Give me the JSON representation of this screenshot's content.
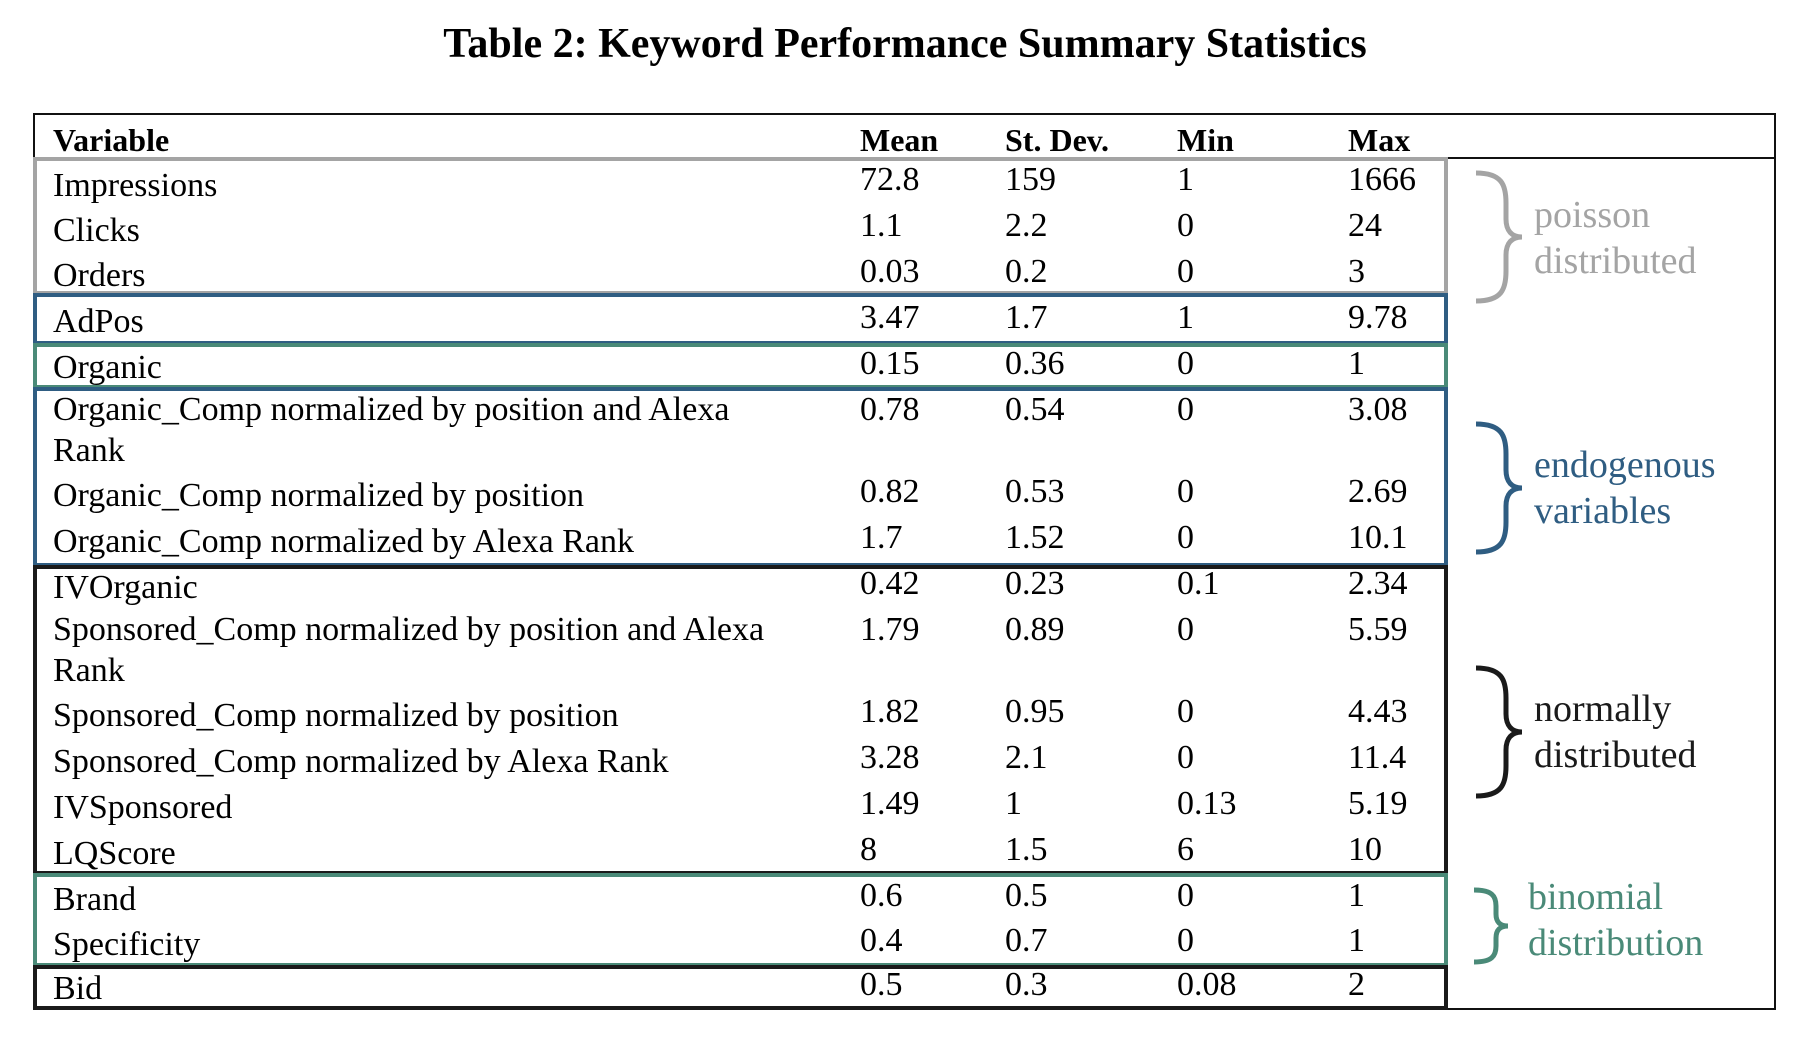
{
  "title": "Table 2:  Keyword Performance Summary Statistics",
  "columns": [
    "Variable",
    "Mean",
    "St. Dev.",
    "Min",
    "Max"
  ],
  "rows": [
    {
      "variable": "Impressions",
      "mean": "72.8",
      "sd": "159",
      "min": "1",
      "max": "1666"
    },
    {
      "variable": "Clicks",
      "mean": "1.1",
      "sd": "2.2",
      "min": "0",
      "max": "24"
    },
    {
      "variable": "Orders",
      "mean": "0.03",
      "sd": "0.2",
      "min": "0",
      "max": "3"
    },
    {
      "variable": "AdPos",
      "mean": "3.47",
      "sd": "1.7",
      "min": "1",
      "max": "9.78"
    },
    {
      "variable": "Organic",
      "mean": "0.15",
      "sd": "0.36",
      "min": "0",
      "max": "1"
    },
    {
      "variable": "Organic_Comp normalized by position and Alexa",
      "variable2": "Rank",
      "mean": "0.78",
      "sd": "0.54",
      "min": "0",
      "max": "3.08"
    },
    {
      "variable": "Organic_Comp normalized by position",
      "mean": "0.82",
      "sd": "0.53",
      "min": "0",
      "max": "2.69"
    },
    {
      "variable": "Organic_Comp normalized by Alexa Rank",
      "mean": "1.7",
      "sd": "1.52",
      "min": "0",
      "max": "10.1"
    },
    {
      "variable": "IVOrganic",
      "mean": "0.42",
      "sd": "0.23",
      "min": "0.1",
      "max": "2.34"
    },
    {
      "variable": "Sponsored_Comp normalized by position and Alexa",
      "variable2": "Rank",
      "mean": "1.79",
      "sd": "0.89",
      "min": "0",
      "max": "5.59"
    },
    {
      "variable": "Sponsored_Comp normalized by position",
      "mean": "1.82",
      "sd": "0.95",
      "min": "0",
      "max": "4.43"
    },
    {
      "variable": "Sponsored_Comp normalized by Alexa Rank",
      "mean": "3.28",
      "sd": "2.1",
      "min": "0",
      "max": "11.4"
    },
    {
      "variable": "IVSponsored",
      "mean": "1.49",
      "sd": "1",
      "min": "0.13",
      "max": "5.19"
    },
    {
      "variable": "LQScore",
      "mean": "8",
      "sd": "1.5",
      "min": "6",
      "max": "10"
    },
    {
      "variable": "Brand",
      "mean": "0.6",
      "sd": "0.5",
      "min": "0",
      "max": "1"
    },
    {
      "variable": "Specificity",
      "mean": "0.4",
      "sd": "0.7",
      "min": "0",
      "max": "1"
    },
    {
      "variable": "Bid",
      "mean": "0.5",
      "sd": "0.3",
      "min": "0.08",
      "max": "2"
    }
  ],
  "groups": [
    {
      "name": "poisson",
      "line1": "poisson",
      "line2": "distributed",
      "color": "#a4a4a4"
    },
    {
      "name": "endogenous",
      "line1": "endogenous",
      "line2": "variables",
      "color": "#2f5d82"
    },
    {
      "name": "normal",
      "line1": "normally",
      "line2": "distributed",
      "color": "#1a1a1a"
    },
    {
      "name": "binomial",
      "line1": "binomial",
      "line2": "distribution",
      "color": "#4a8a78"
    }
  ]
}
